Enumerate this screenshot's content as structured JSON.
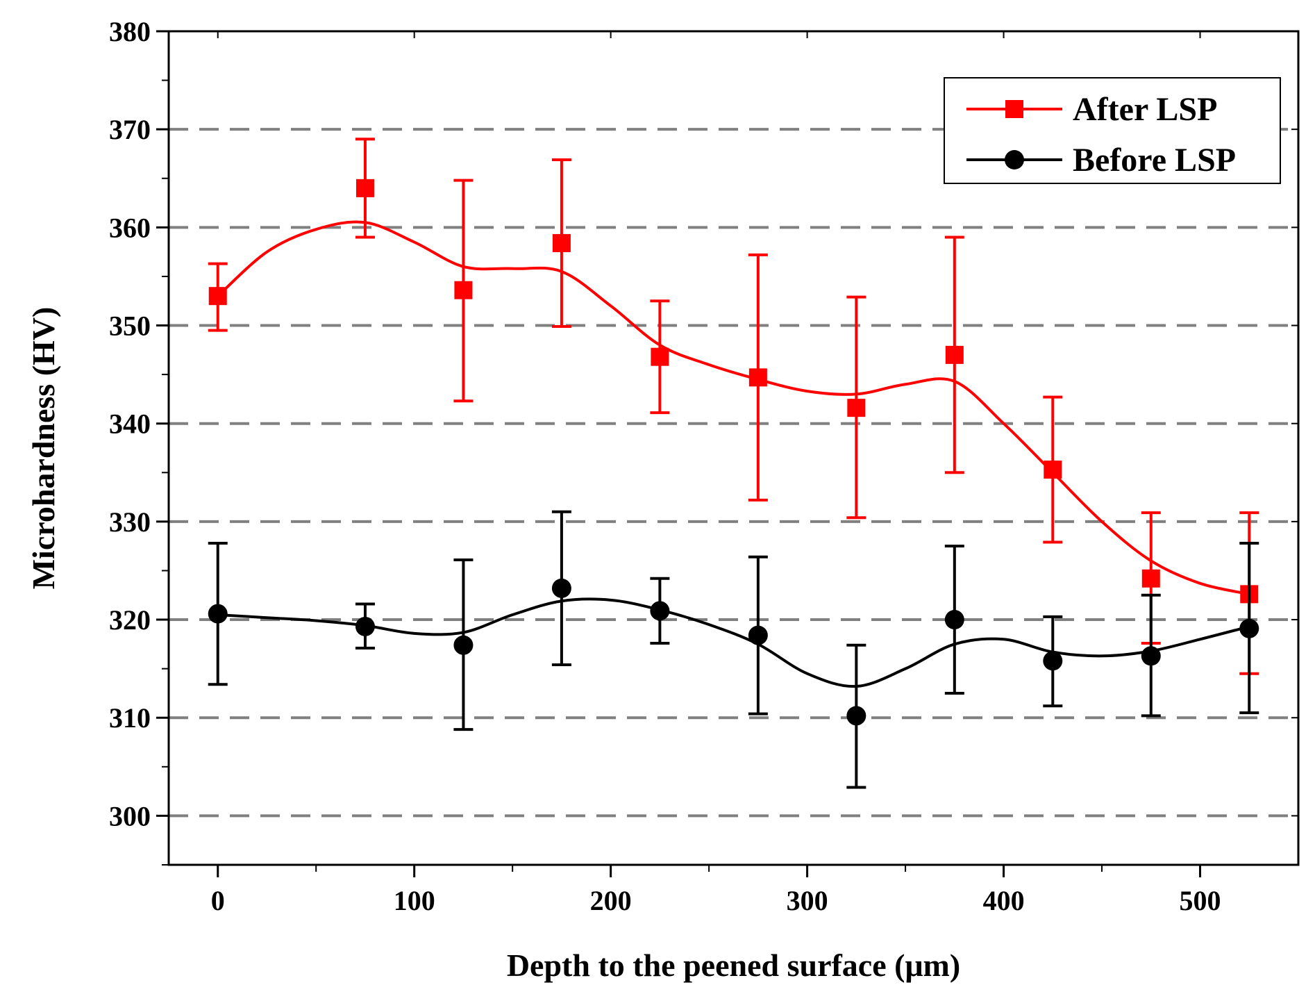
{
  "chart_data": {
    "type": "line",
    "title": "",
    "xlabel": "Depth to the peened surface (μm)",
    "ylabel": "Microhardness (HV)",
    "xlim": [
      -25,
      550
    ],
    "ylim": [
      295,
      380
    ],
    "x_ticks": [
      0,
      100,
      200,
      300,
      400,
      500
    ],
    "x_tick_labels": [
      "0",
      "100",
      "200",
      "300",
      "400",
      "500"
    ],
    "y_ticks": [
      300,
      310,
      320,
      330,
      340,
      350,
      360,
      370,
      380
    ],
    "y_tick_labels": [
      "300",
      "310",
      "320",
      "330",
      "340",
      "350",
      "360",
      "370",
      "380"
    ],
    "gridlines": {
      "y": true,
      "style": "dashed"
    },
    "legend": {
      "position": "top-right"
    },
    "series": [
      {
        "name": "After LSP",
        "color": "#ff0000",
        "marker": "square",
        "x": [
          0,
          75,
          125,
          175,
          225,
          275,
          325,
          375,
          425,
          475,
          525
        ],
        "y": [
          353,
          364,
          353.6,
          358.4,
          346.8,
          344.7,
          341.6,
          347,
          335.3,
          324.2,
          322.6
        ],
        "err_low": [
          349.5,
          359,
          342.3,
          349.9,
          341.1,
          332.2,
          330.4,
          335,
          327.9,
          317.6,
          314.5
        ],
        "err_high": [
          356.3,
          369,
          364.8,
          366.9,
          352.5,
          357.2,
          352.9,
          359,
          342.7,
          330.9,
          330.9
        ],
        "smooth_x": [
          0,
          25,
          50,
          75,
          100,
          125,
          150,
          175,
          200,
          225,
          250,
          275,
          300,
          325,
          350,
          375,
          400,
          425,
          450,
          475,
          500,
          525
        ],
        "smooth_y": [
          353,
          357.5,
          359.8,
          360.5,
          358.5,
          356,
          355.8,
          355.5,
          352,
          348,
          346,
          344.5,
          343.3,
          343,
          344,
          344.3,
          340,
          335,
          330,
          326,
          323.7,
          322.6
        ]
      },
      {
        "name": "Before LSP",
        "color": "#000000",
        "marker": "circle",
        "x": [
          0,
          75,
          125,
          175,
          225,
          275,
          325,
          375,
          425,
          475,
          525
        ],
        "y": [
          320.6,
          319.3,
          317.4,
          323.2,
          320.9,
          318.4,
          310.2,
          320,
          315.8,
          316.3,
          319.1
        ],
        "err_low": [
          313.4,
          317.1,
          308.8,
          315.4,
          317.6,
          310.4,
          302.9,
          312.5,
          311.2,
          310.2,
          310.5
        ],
        "err_high": [
          327.8,
          321.6,
          326.1,
          331,
          324.2,
          326.4,
          317.4,
          327.5,
          320.3,
          322.5,
          327.8
        ],
        "smooth_x": [
          0,
          25,
          50,
          75,
          100,
          125,
          150,
          175,
          200,
          225,
          250,
          275,
          300,
          325,
          350,
          375,
          400,
          425,
          450,
          475,
          500,
          525
        ],
        "smooth_y": [
          320.5,
          320.2,
          319.9,
          319.4,
          318.6,
          318.7,
          320.5,
          321.9,
          322,
          321,
          319.5,
          317.5,
          314.5,
          313.2,
          315,
          317.5,
          318,
          316.7,
          316.3,
          316.8,
          318,
          319.3
        ]
      }
    ]
  }
}
